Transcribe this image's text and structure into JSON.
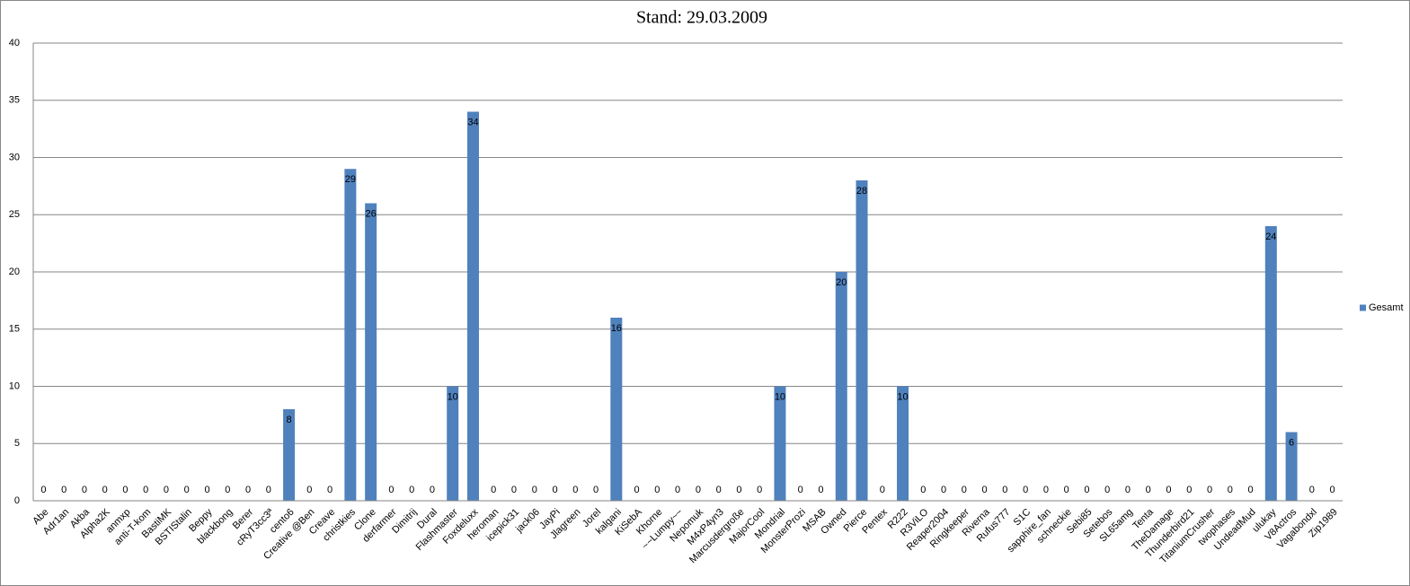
{
  "chart_data": {
    "type": "bar",
    "title": "Stand: 29.03.2009",
    "categories": [
      "Abe",
      "Adr1an",
      "Akba",
      "Alpha2K",
      "anmxp",
      "anti-T-kom",
      "BastiMK",
      "BSTIStalin",
      "Beppy",
      "blackbong",
      "Berer",
      "cRyT3cc3ª",
      "cento6",
      "Creative @Ben",
      "Creave",
      "christkies",
      "Clone",
      "derfarmer",
      "Dimitrij",
      "Dural",
      "Flashmaster",
      "Foxdeluxx",
      "heroman",
      "icepick31",
      "jack06",
      "JayPi",
      "Jlagreen",
      "Jorel",
      "kalgani",
      "KiSebA",
      "Khorne",
      "~~Lumpy~~",
      "Nepomuk",
      "M4xP4yn3",
      "Marcusdergroße",
      "MajorCool",
      "Mondrial",
      "MonsterProzi",
      "MSAB",
      "Owned",
      "Pierce",
      "Pentex",
      "R222",
      "R3ViLO",
      "Reaper2004",
      "Ringkeeper",
      "Riverna",
      "Rufus777",
      "S1C",
      "sapphire_fan",
      "schneckie",
      "Sebi85",
      "Setebos",
      "SL65amg",
      "Tenta",
      "TheDamage",
      "Thunderbird21",
      "TitaniumCrusher",
      "twophases",
      "UndeadMud",
      "ulukay",
      "V8Actros",
      "Vagabondxl",
      "Zip1989"
    ],
    "series": [
      {
        "name": "Gesamt",
        "color": "#4f81bd",
        "values": [
          0,
          0,
          0,
          0,
          0,
          0,
          0,
          0,
          0,
          0,
          0,
          0,
          8,
          0,
          0,
          29,
          26,
          0,
          0,
          0,
          10,
          34,
          0,
          0,
          0,
          0,
          0,
          0,
          16,
          0,
          0,
          0,
          0,
          0,
          0,
          0,
          10,
          0,
          0,
          20,
          28,
          0,
          10,
          0,
          0,
          0,
          0,
          0,
          0,
          0,
          0,
          0,
          0,
          0,
          0,
          0,
          0,
          0,
          0,
          0,
          24,
          6,
          0,
          0
        ]
      }
    ],
    "ylim": [
      0,
      40
    ],
    "yticks": [
      0,
      5,
      10,
      15,
      20,
      25,
      30,
      35,
      40
    ],
    "grid": true,
    "legend": "right"
  }
}
